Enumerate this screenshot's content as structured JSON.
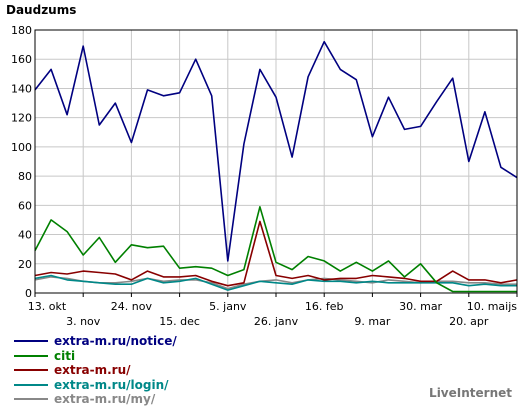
{
  "chart_data": {
    "type": "line",
    "title": "Daudzums",
    "ylim": [
      0,
      180
    ],
    "yticks": [
      0,
      20,
      40,
      60,
      80,
      100,
      120,
      140,
      160,
      180
    ],
    "x_tick_labels_top": [
      "13. okt",
      "24. nov",
      "5. janv",
      "16. feb",
      "30. mar",
      "10. maijs"
    ],
    "x_tick_labels_bottom": [
      "3. nov",
      "15. dec",
      "26. janv",
      "9. mar",
      "20. apr"
    ],
    "x": [
      "2008-10-13",
      "2008-10-20",
      "2008-10-27",
      "2008-11-03",
      "2008-11-10",
      "2008-11-17",
      "2008-11-24",
      "2008-12-01",
      "2008-12-08",
      "2008-12-15",
      "2008-12-22",
      "2008-12-29",
      "2009-01-05",
      "2009-01-12",
      "2009-01-19",
      "2009-01-26",
      "2009-02-02",
      "2009-02-09",
      "2009-02-16",
      "2009-02-23",
      "2009-03-02",
      "2009-03-09",
      "2009-03-16",
      "2009-03-23",
      "2009-03-30",
      "2009-04-06",
      "2009-04-13",
      "2009-04-20",
      "2009-04-27",
      "2009-05-04",
      "2009-05-11"
    ],
    "grid": true,
    "legend_position": "bottom-left",
    "series": [
      {
        "name": "extra-m.ru/notice/",
        "color": "#000080",
        "values": [
          139,
          153,
          122,
          169,
          115,
          130,
          103,
          139,
          135,
          137,
          160,
          135,
          22,
          102,
          153,
          134,
          93,
          148,
          172,
          153,
          146,
          107,
          134,
          112,
          114,
          131,
          147,
          90,
          124,
          86,
          79
        ]
      },
      {
        "name": "citi",
        "color": "#008000",
        "values": [
          29,
          50,
          42,
          26,
          38,
          21,
          33,
          31,
          32,
          17,
          18,
          17,
          12,
          16,
          59,
          21,
          16,
          25,
          22,
          15,
          21,
          15,
          22,
          11,
          20,
          7,
          1,
          1,
          1,
          1,
          1
        ]
      },
      {
        "name": "extra-m.ru/",
        "color": "#880000",
        "values": [
          12,
          14,
          13,
          15,
          14,
          13,
          9,
          15,
          11,
          11,
          12,
          8,
          5,
          7,
          49,
          12,
          10,
          12,
          9,
          10,
          10,
          12,
          11,
          10,
          8,
          8,
          15,
          9,
          9,
          7,
          9
        ]
      },
      {
        "name": "extra-m.ru/login/",
        "color": "#008888",
        "values": [
          10,
          12,
          9,
          8,
          7,
          6,
          6,
          10,
          7,
          8,
          10,
          6,
          2,
          5,
          8,
          7,
          6,
          9,
          8,
          8,
          7,
          8,
          7,
          7,
          7,
          7,
          7,
          5,
          6,
          5,
          5
        ]
      },
      {
        "name": "extra-m.ru/my/",
        "color": "#888888",
        "values": [
          9,
          11,
          10,
          8,
          7,
          7,
          8,
          10,
          8,
          9,
          9,
          7,
          3,
          6,
          8,
          9,
          7,
          9,
          10,
          9,
          8,
          7,
          9,
          8,
          7,
          8,
          8,
          7,
          7,
          6,
          6
        ]
      }
    ]
  },
  "brand": "LiveInternet"
}
